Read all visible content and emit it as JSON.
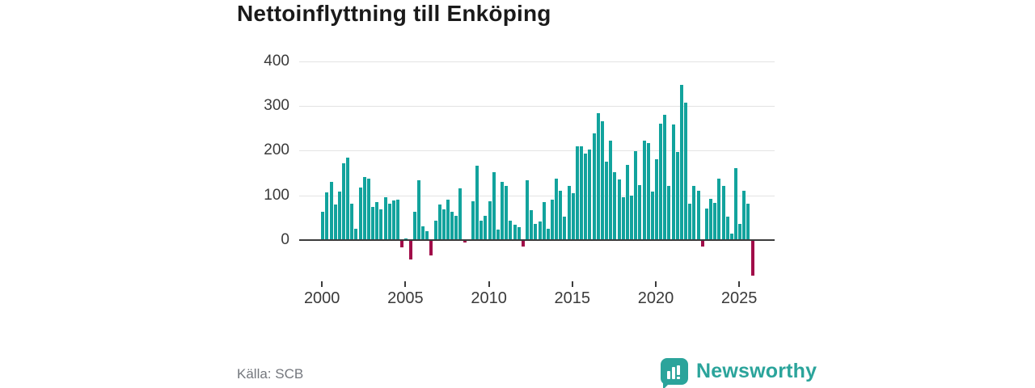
{
  "title": "Nettoinflyttning till Enköping",
  "source": "Källa: SCB",
  "brand": {
    "name": "Newsworthy",
    "icon": "bar-chart-speech-bubble-icon",
    "color": "#2ba49b"
  },
  "colors": {
    "positive_bar": "#12a39d",
    "negative_bar": "#a10d49",
    "axis": "#3b3b3b",
    "gridline": "#e3e3e3",
    "title_text": "#1a1a1a",
    "tick_text": "#3a3a3a",
    "source_text": "#74777d"
  },
  "chart_data": {
    "type": "bar",
    "title": "Nettoinflyttning till Enköping",
    "xlabel": "",
    "ylabel": "",
    "frequency": "quarterly",
    "start": "2000Q1",
    "end": "2025Q4",
    "x_tick_labels": [
      "2000",
      "2005",
      "2010",
      "2015",
      "2020",
      "2025"
    ],
    "y_ticks": [
      0,
      100,
      200,
      300,
      400
    ],
    "ylim": [
      -90,
      430
    ],
    "grid": "horizontal",
    "legend": "none",
    "values": [
      63,
      106,
      131,
      79,
      109,
      172,
      184,
      81,
      26,
      117,
      141,
      137,
      74,
      85,
      68,
      95,
      82,
      88,
      91,
      -14,
      4,
      -41,
      63,
      133,
      30,
      19,
      -33,
      44,
      80,
      69,
      90,
      63,
      55,
      115,
      -4,
      2,
      87,
      166,
      44,
      55,
      87,
      151,
      23,
      131,
      121,
      43,
      34,
      29,
      -13,
      133,
      67,
      36,
      41,
      85,
      25,
      90,
      137,
      110,
      53,
      122,
      104,
      209,
      209,
      193,
      203,
      238,
      284,
      265,
      176,
      222,
      151,
      135,
      96,
      169,
      99,
      199,
      123,
      223,
      217,
      109,
      181,
      261,
      280,
      121,
      259,
      198,
      348,
      307,
      82,
      122,
      110,
      -13,
      70,
      92,
      84,
      138,
      122,
      52,
      15,
      161,
      37,
      111,
      81,
      -78
    ]
  }
}
